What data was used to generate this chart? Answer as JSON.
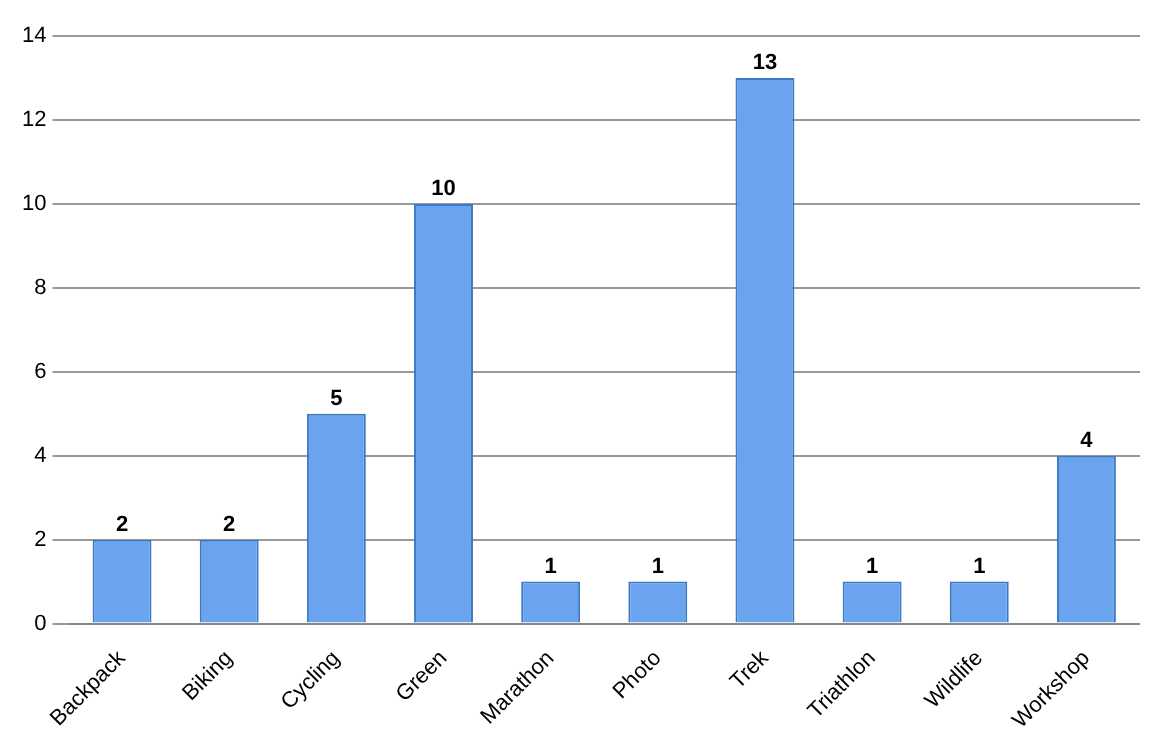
{
  "chart_data": {
    "type": "bar",
    "categories": [
      "Backpack",
      "Biking",
      "Cycling",
      "Green",
      "Marathon",
      "Photo",
      "Trek",
      "Triathlon",
      "Wildlife",
      "Workshop"
    ],
    "values": [
      2,
      2,
      5,
      10,
      1,
      1,
      13,
      1,
      1,
      4
    ],
    "color": "#6aa4ee",
    "ylim": [
      0,
      14
    ],
    "yticks": [
      0,
      2,
      4,
      6,
      8,
      10,
      12,
      14
    ],
    "grid": "y",
    "data_labels": true
  }
}
